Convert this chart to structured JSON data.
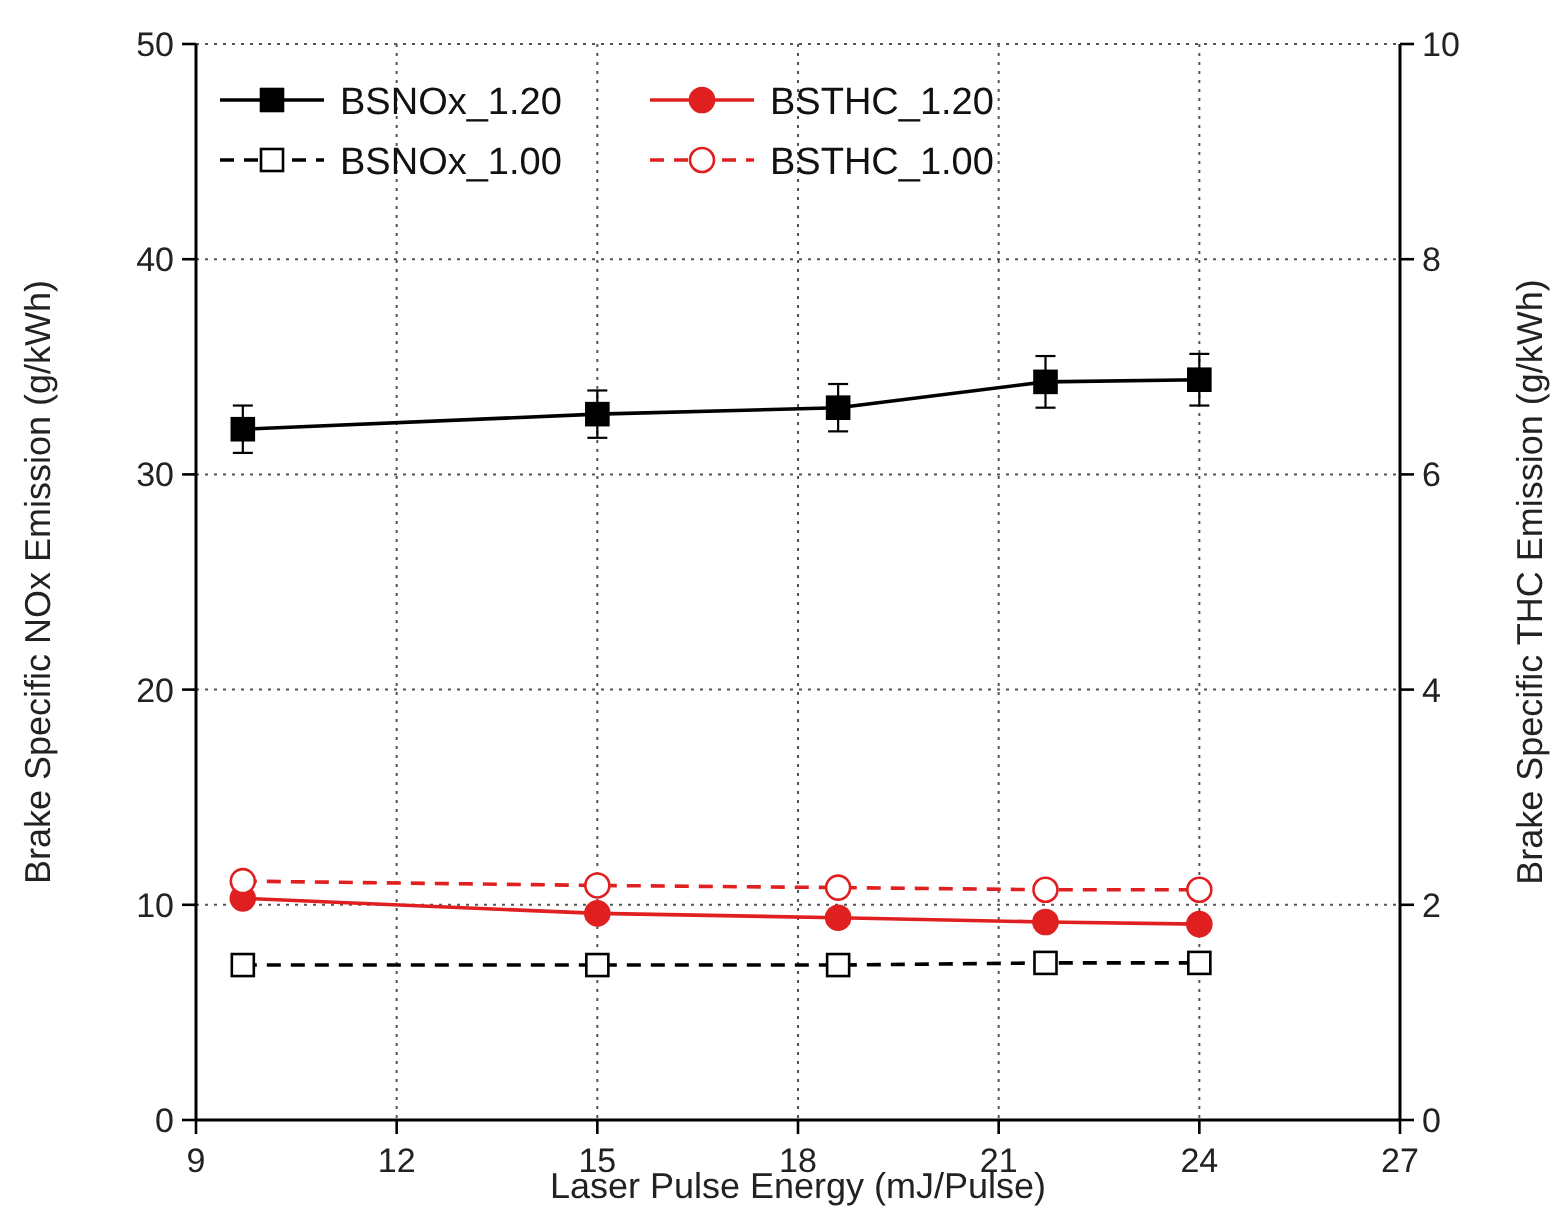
{
  "chart_data": {
    "type": "line",
    "xlabel": "Laser Pulse Energy (mJ/Pulse)",
    "ylabel": "Brake Specific NOx Emission (g/kWh)",
    "y2label": "Brake Specific THC Emission (g/kWh)",
    "x": [
      9.7,
      15,
      18.6,
      21.7,
      24
    ],
    "xlim": [
      9,
      27
    ],
    "xticks": [
      9,
      12,
      15,
      18,
      21,
      24,
      27
    ],
    "ylim": [
      0,
      50
    ],
    "yticks": [
      0,
      10,
      20,
      30,
      40,
      50
    ],
    "y2lim": [
      0,
      10
    ],
    "y2ticks": [
      0,
      2,
      4,
      6,
      8,
      10
    ],
    "grid": true,
    "legend": "top left",
    "series": [
      {
        "name": "BSNOx_1.20",
        "color": "#000000",
        "values": [
          32.1,
          32.8,
          33.1,
          34.3,
          34.4
        ],
        "errors": [
          1.1,
          1.1,
          1.1,
          1.2,
          1.2
        ],
        "marker": "square",
        "line_style": "solid"
      },
      {
        "name": "BSNOx_1.00",
        "color": "#000000",
        "values": [
          7.2,
          7.2,
          7.2,
          7.3,
          7.3
        ],
        "marker": "square",
        "line_style": "dashed"
      },
      {
        "name": "BSTHC_1.20",
        "color": "#e02020",
        "values": [
          2.06,
          1.92,
          1.88,
          1.84,
          1.82
        ],
        "axis": "y2",
        "marker": "circle",
        "line_style": "solid"
      },
      {
        "name": "BSTHC_1.00",
        "color": "#e02020",
        "values": [
          2.22,
          2.18,
          2.16,
          2.14,
          2.14
        ],
        "axis": "y2",
        "marker": "circle",
        "line_style": "dashed"
      }
    ]
  }
}
